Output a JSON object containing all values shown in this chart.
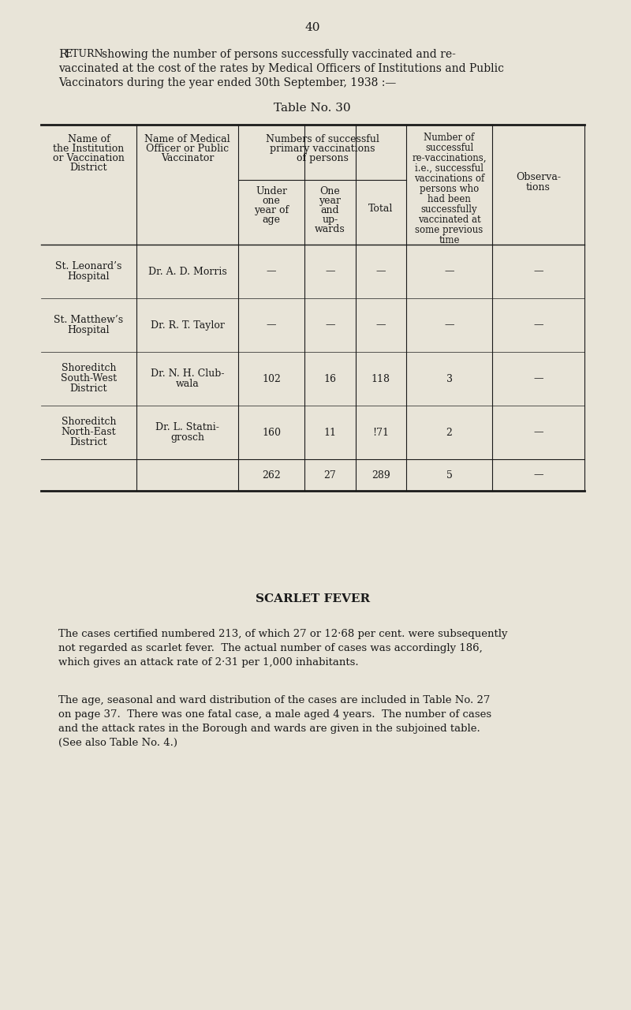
{
  "bg_color": "#e8e4d8",
  "page_number": "40",
  "intro_text": [
    "Return showing the number of persons successfully vaccinated and re-",
    "vaccinated at the cost of the rates by Medical Officers of Institutions and Public",
    "Vaccinators during the year ended 30th September, 1938 :—"
  ],
  "table_title": "Table No. 30",
  "col_headers": {
    "col1_line1": "Name of",
    "col1_line2": "the Institution",
    "col1_line3": "or Vaccination",
    "col1_line4": "District",
    "col2_line1": "Name of Medical",
    "col2_line2": "Officer or Public",
    "col2_line3": "Vaccinator",
    "col3_header_line1": "Numbers of successful",
    "col3_header_line2": "primary vaccinations",
    "col3_header_line3": "of persons",
    "col3a_line1": "Under",
    "col3a_line2": "one",
    "col3a_line3": "year of",
    "col3a_line4": "age",
    "col3b_line1": "One",
    "col3b_line2": "year",
    "col3b_line3": "and",
    "col3b_line4": "up-",
    "col3b_line5": "wards",
    "col3c": "Total",
    "col4_line1": "Number of",
    "col4_line2": "successful",
    "col4_line3": "re-vaccinations,",
    "col4_line4": "i.e., successful",
    "col4_line5": "vaccinations of",
    "col4_line6": "persons who",
    "col4_line7": "had been",
    "col4_line8": "successfully",
    "col4_line9": "vaccinated at",
    "col4_line10": "some previous",
    "col4_line11": "time",
    "col5_line1": "Observa-",
    "col5_line2": "tions"
  },
  "rows": [
    {
      "institution": "St. Leonard's\nHospital",
      "officer": "Dr. A. D. Morris",
      "under_one": "—",
      "one_and_up": "—",
      "total": "—",
      "revac": "—",
      "obs": "—"
    },
    {
      "institution": "St. Matthew's\nHospital",
      "officer": "Dr. R. T. Taylor",
      "under_one": "—",
      "one_and_up": "—",
      "total": "—",
      "revac": "—",
      "obs": "—"
    },
    {
      "institution": "Shoreditch\nSouth-West\nDistrict",
      "officer": "Dr. N. H. Club-\nwala",
      "under_one": "102",
      "one_and_up": "16",
      "total": "118",
      "revac": "3",
      "obs": "—"
    },
    {
      "institution": "Shoreditch\nNorth-East\nDistrict",
      "officer": "Dr. L. Statni-\ngrosch",
      "under_one": "160",
      "one_and_up": "11",
      "total": "!71",
      "revac": "2",
      "obs": "—"
    }
  ],
  "totals_row": {
    "under_one": "262",
    "one_and_up": "27",
    "total": "289",
    "revac": "5",
    "obs": "—"
  },
  "scarlet_fever_heading": "SCARLET FEVER",
  "scarlet_fever_paragraphs": [
    "The cases certified numbered 213, of which 27 or 12·68 per cent. were subsequently\nnot regarded as scarlet fever.  The actual number of cases was accordingly 186,\nwhich gives an attack rate of 2·31 per 1,000 inhabitants.",
    "The age, seasonal and ward distribution of the cases are included in Table No. 27\non page 37.  There was one fatal case, a male aged 4 years.  The number of cases\nand the attack rates in the Borough and wards are given in the subjoined table.\n(See also Table No. 4.)"
  ],
  "font_size_body": 9,
  "font_size_intro": 10,
  "font_size_table_title": 11,
  "font_size_page_num": 11,
  "font_size_scarlet": 11
}
